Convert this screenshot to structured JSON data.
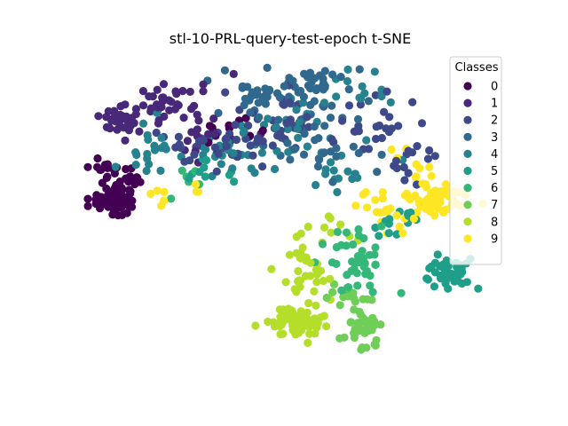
{
  "chart_data": {
    "type": "scatter",
    "title": "stl-10-PRL-query-test-epoch t-SNE",
    "xlabel": "",
    "ylabel": "",
    "axes_visible": false,
    "grid": false,
    "legend": {
      "title": "Classes",
      "placement": "top-right",
      "entries": [
        "0",
        "1",
        "2",
        "3",
        "4",
        "5",
        "6",
        "7",
        "8",
        "9"
      ]
    },
    "series": [
      {
        "name": "0",
        "color": "#440154",
        "clusters": [
          {
            "center": [
              -68,
              0
            ],
            "spread": [
              4,
              3
            ],
            "n": 60
          },
          {
            "center": [
              -72,
              12
            ],
            "spread": [
              3,
              2
            ],
            "n": 14
          },
          {
            "center": [
              -62,
              8
            ],
            "spread": [
              3,
              3
            ],
            "n": 12
          },
          {
            "center": [
              -28,
              28
            ],
            "spread": [
              6,
              4
            ],
            "n": 10
          }
        ]
      },
      {
        "name": "1",
        "color": "#482878",
        "clusters": [
          {
            "center": [
              -65,
              31
            ],
            "spread": [
              4,
              3
            ],
            "n": 32
          },
          {
            "center": [
              -50,
              37
            ],
            "spread": [
              7,
              5
            ],
            "n": 30
          },
          {
            "center": [
              -35,
              30
            ],
            "spread": [
              8,
              8
            ],
            "n": 24
          }
        ]
      },
      {
        "name": "2",
        "color": "#3e4989",
        "clusters": [
          {
            "center": [
              -30,
              22
            ],
            "spread": [
              10,
              6
            ],
            "n": 40
          },
          {
            "center": [
              -5,
              30
            ],
            "spread": [
              10,
              6
            ],
            "n": 30
          },
          {
            "center": [
              28,
              28
            ],
            "spread": [
              8,
              6
            ],
            "n": 24
          },
          {
            "center": [
              45,
              15
            ],
            "spread": [
              7,
              4
            ],
            "n": 14
          }
        ]
      },
      {
        "name": "3",
        "color": "#31688e",
        "clusters": [
          {
            "center": [
              -12,
              40
            ],
            "spread": [
              8,
              5
            ],
            "n": 30
          },
          {
            "center": [
              5,
              44
            ],
            "spread": [
              10,
              5
            ],
            "n": 40
          },
          {
            "center": [
              10,
              20
            ],
            "spread": [
              10,
              6
            ],
            "n": 30
          }
        ]
      },
      {
        "name": "4",
        "color": "#26828e",
        "clusters": [
          {
            "center": [
              -55,
              18
            ],
            "spread": [
              5,
              5
            ],
            "n": 18
          },
          {
            "center": [
              -25,
              18
            ],
            "spread": [
              10,
              5
            ],
            "n": 26
          },
          {
            "center": [
              0,
              25
            ],
            "spread": [
              12,
              8
            ],
            "n": 30
          },
          {
            "center": [
              25,
              45
            ],
            "spread": [
              5,
              4
            ],
            "n": 12
          },
          {
            "center": [
              20,
              8
            ],
            "spread": [
              6,
              5
            ],
            "n": 12
          }
        ]
      },
      {
        "name": "5",
        "color": "#1f9e89",
        "clusters": [
          {
            "center": [
              60,
              -30
            ],
            "spread": [
              4,
              3
            ],
            "n": 45
          },
          {
            "center": [
              43,
              -10
            ],
            "spread": [
              6,
              3
            ],
            "n": 14
          },
          {
            "center": [
              -35,
              10
            ],
            "spread": [
              6,
              4
            ],
            "n": 10
          }
        ]
      },
      {
        "name": "6",
        "color": "#35b779",
        "clusters": [
          {
            "center": [
              22,
              -20
            ],
            "spread": [
              6,
              5
            ],
            "n": 26
          },
          {
            "center": [
              28,
              -33
            ],
            "spread": [
              6,
              4
            ],
            "n": 16
          },
          {
            "center": [
              -40,
              6
            ],
            "spread": [
              4,
              3
            ],
            "n": 6
          }
        ]
      },
      {
        "name": "7",
        "color": "#6ece58",
        "clusters": [
          {
            "center": [
              28,
              -52
            ],
            "spread": [
              4,
              3
            ],
            "n": 40
          },
          {
            "center": [
              20,
              -40
            ],
            "spread": [
              5,
              3
            ],
            "n": 14
          }
        ]
      },
      {
        "name": "8",
        "color": "#b5de2b",
        "clusters": [
          {
            "center": [
              2,
              -50
            ],
            "spread": [
              5,
              3
            ],
            "n": 70
          },
          {
            "center": [
              5,
              -32
            ],
            "spread": [
              6,
              7
            ],
            "n": 34
          },
          {
            "center": [
              14,
              -18
            ],
            "spread": [
              5,
              5
            ],
            "n": 10
          }
        ]
      },
      {
        "name": "9",
        "color": "#fde725",
        "clusters": [
          {
            "center": [
              55,
              0
            ],
            "spread": [
              6,
              3
            ],
            "n": 60
          },
          {
            "center": [
              35,
              -5
            ],
            "spread": [
              6,
              5
            ],
            "n": 20
          },
          {
            "center": [
              45,
              12
            ],
            "spread": [
              6,
              4
            ],
            "n": 10
          },
          {
            "center": [
              -45,
              2
            ],
            "spread": [
              5,
              3
            ],
            "n": 8
          }
        ]
      }
    ],
    "xlim": [
      -80,
      80
    ],
    "ylim": [
      -70,
      58
    ]
  }
}
